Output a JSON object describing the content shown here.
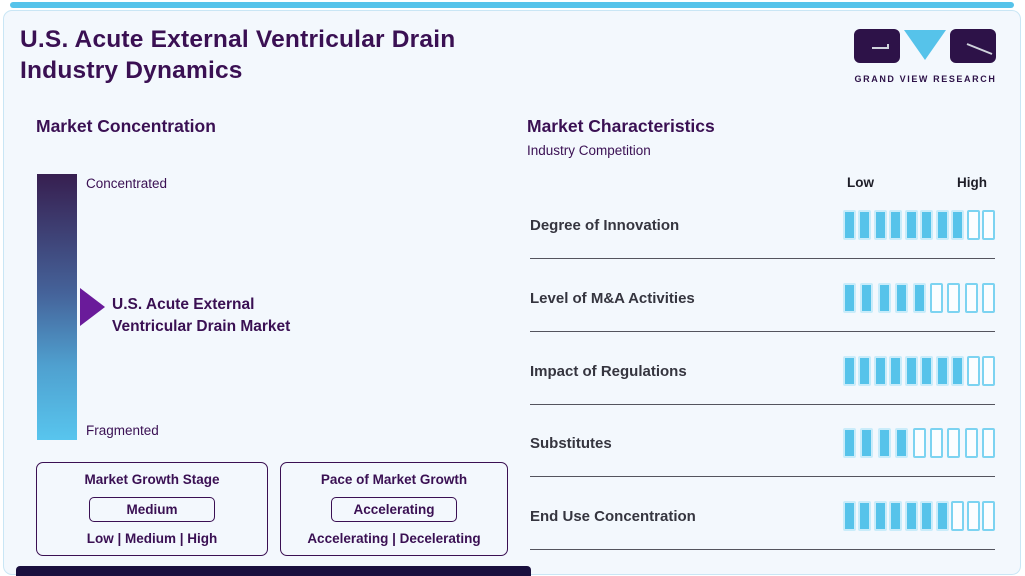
{
  "page": {
    "title_line1": "U.S. Acute External Ventricular Drain",
    "title_line2": "Industry Dynamics"
  },
  "logo": {
    "text": "GRAND VIEW RESEARCH"
  },
  "market_concentration": {
    "heading": "Market Concentration",
    "top_label": "Concentrated",
    "bottom_label": "Fragmented",
    "pointer_label_line1": "U.S. Acute External",
    "pointer_label_line2": "Ventricular Drain Market"
  },
  "growth_boxes": [
    {
      "title": "Market Growth Stage",
      "value": "Medium",
      "options": "Low | Medium | High"
    },
    {
      "title": "Pace of Market Growth",
      "value": "Accelerating",
      "options": "Accelerating | Decelerating"
    }
  ],
  "market_characteristics": {
    "heading": "Market Characteristics",
    "subheading": "Industry Competition",
    "scale_low": "Low",
    "scale_high": "High",
    "rows": [
      {
        "label": "Degree of Innovation",
        "filled": 8,
        "total": 10
      },
      {
        "label": "Level of M&A Activities",
        "filled": 5,
        "total": 9
      },
      {
        "label": "Impact of Regulations",
        "filled": 8,
        "total": 10
      },
      {
        "label": "Substitutes",
        "filled": 4,
        "total": 9
      },
      {
        "label": "End Use Concentration",
        "filled": 7,
        "total": 10
      }
    ]
  },
  "chart_data": {
    "type": "bar",
    "title": "Market Characteristics — Industry Competition",
    "categories": [
      "Degree of Innovation",
      "Level of M&A Activities",
      "Impact of Regulations",
      "Substitutes",
      "End Use Concentration"
    ],
    "values": [
      8,
      5,
      8,
      4,
      7
    ],
    "totals": [
      10,
      9,
      10,
      9,
      10
    ],
    "scale_labels": [
      "Low",
      "High"
    ],
    "legend_position": "none",
    "notes": "values = filled tick segments per row on a Low-to-High discrete scale"
  },
  "colors": {
    "purple": "#3a1053",
    "sky_blue": "#56c3ea",
    "arrow_purple": "#6a1b9a",
    "background": "#f3f8fd",
    "gradient_top": "#371f50",
    "gradient_bottom": "#58c5ee",
    "row_label": "#35353f",
    "divider": "#54545e",
    "footer_bar": "#190f3e"
  }
}
